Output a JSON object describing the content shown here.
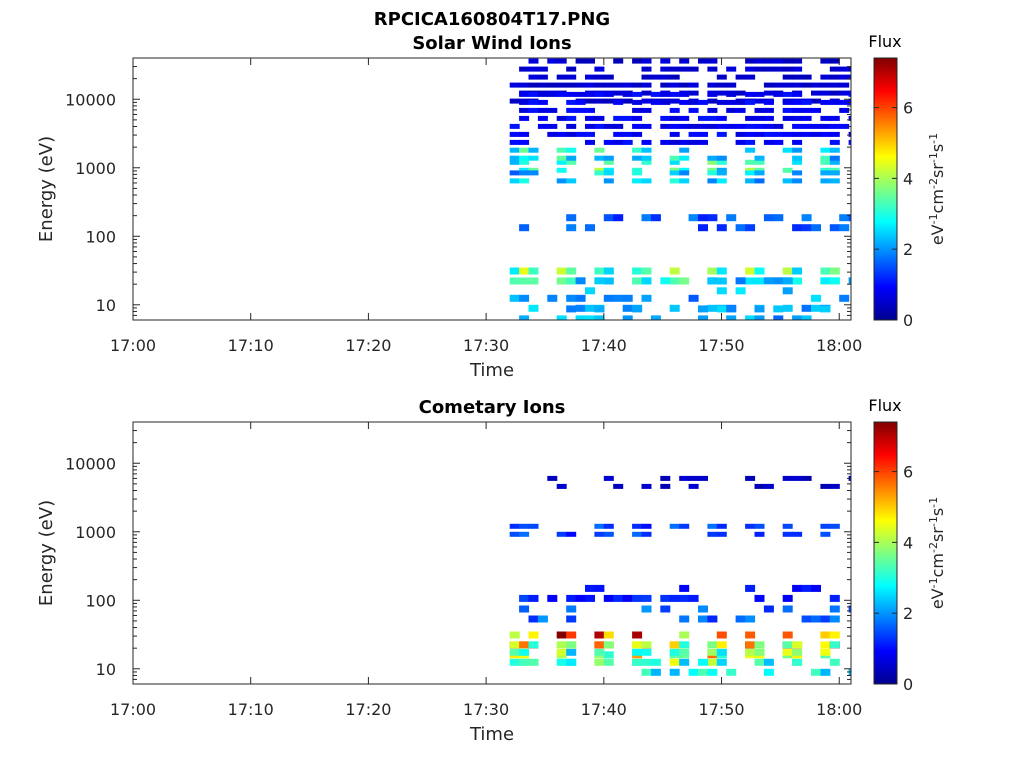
{
  "figure_title": "RPCICA160804T17.PNG",
  "chart_data": [
    {
      "type": "heatmap",
      "title": "Solar Wind Ions",
      "xlabel": "Time",
      "ylabel": "Energy (eV)",
      "x_ticks": [
        "17:00",
        "17:10",
        "17:20",
        "17:30",
        "17:40",
        "17:50",
        "18:00"
      ],
      "xlim": [
        "17:00",
        "18:01"
      ],
      "y_scale": "log",
      "y_ticks": [
        "10",
        "100",
        "1000",
        "10000"
      ],
      "ylim": [
        6,
        40000
      ],
      "data_start": "17:32",
      "colorbar": {
        "label": "Flux",
        "units": "eV-1cm-2sr-1s-1",
        "range": [
          0,
          7.4
        ],
        "ticks": [
          "0",
          "2",
          "4",
          "6"
        ]
      },
      "bands": [
        {
          "center": 25,
          "value": 3.1,
          "pattern": "pulsed"
        },
        {
          "center": 18,
          "value": 2.4,
          "pattern": "sparse"
        },
        {
          "center": 10,
          "value": 2.2,
          "pattern": "sparse"
        },
        {
          "center": 7,
          "value": 2.3,
          "pattern": "sparse"
        },
        {
          "center": 1000,
          "value": 3.0,
          "pattern": "pulsed"
        },
        {
          "center": 1500,
          "value": 2.5,
          "pattern": "pulsed"
        },
        {
          "center": 700,
          "value": 2.2,
          "pattern": "pulsed"
        },
        {
          "center": 150,
          "value": 1.6,
          "pattern": "sparse"
        },
        {
          "center": 20000,
          "value": 0.6,
          "pattern": "dense"
        },
        {
          "center": 5000,
          "value": 0.9,
          "pattern": "dense"
        }
      ]
    },
    {
      "type": "heatmap",
      "title": "Cometary Ions",
      "xlabel": "Time",
      "ylabel": "Energy (eV)",
      "x_ticks": [
        "17:00",
        "17:10",
        "17:20",
        "17:30",
        "17:40",
        "17:50",
        "18:00"
      ],
      "xlim": [
        "17:00",
        "18:01"
      ],
      "y_scale": "log",
      "y_ticks": [
        "10",
        "100",
        "1000",
        "10000"
      ],
      "ylim": [
        6,
        40000
      ],
      "data_start": "17:32",
      "colorbar": {
        "label": "Flux",
        "units": "eV-1cm-2sr-1s-1",
        "range": [
          0,
          7.4
        ],
        "ticks": [
          "0",
          "2",
          "4",
          "6"
        ]
      },
      "bands": [
        {
          "center": 25,
          "value": 5.5,
          "pattern": "pulsed"
        },
        {
          "center": 18,
          "value": 4.0,
          "pattern": "pulsed"
        },
        {
          "center": 14,
          "value": 3.2,
          "pattern": "pulsed"
        },
        {
          "center": 10,
          "value": 2.8,
          "pattern": "sparse"
        },
        {
          "center": 1000,
          "value": 1.3,
          "pattern": "pulsed"
        },
        {
          "center": 60,
          "value": 1.7,
          "pattern": "sparse"
        },
        {
          "center": 120,
          "value": 1.2,
          "pattern": "sparse"
        },
        {
          "center": 5000,
          "value": 0.5,
          "pattern": "sparse"
        }
      ]
    }
  ]
}
